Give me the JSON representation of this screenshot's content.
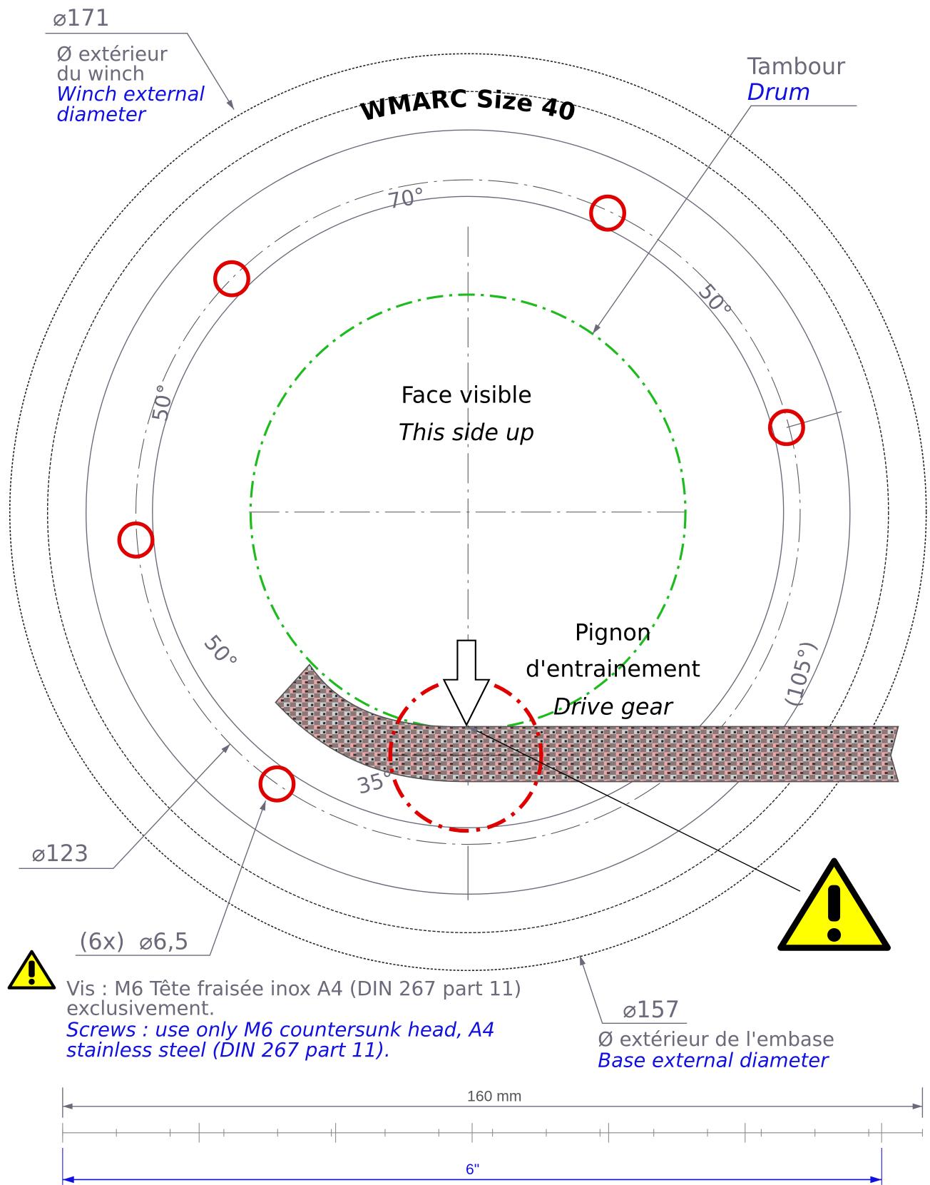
{
  "title": "WMARC Size 40",
  "winch_diameter": {
    "dimension": "⌀171",
    "lines_fr": [
      "Ø extérieur",
      "du winch"
    ],
    "lines_en": [
      "Winch external",
      "diameter"
    ]
  },
  "drum": {
    "fr": "Tambour",
    "en": "Drum"
  },
  "face": {
    "fr": "Face visible",
    "en": "This side up"
  },
  "drive_gear": {
    "fr": [
      "Pignon",
      "d'entrainement"
    ],
    "en": "Drive gear"
  },
  "angles": [
    "70°",
    "50°",
    "50°",
    "50°",
    "35°",
    "(105°)"
  ],
  "bolt_circle": "⌀123",
  "holes": "(6x)  ⌀6,5",
  "screw_note": {
    "fr": [
      "Vis : M6 Tête fraisée inox A4 (DIN 267 part 11)",
      "exclusivement."
    ],
    "en": [
      "Screws : use only M6 countersunk head, A4",
      "stainless steel (DIN 267 part 11)."
    ]
  },
  "base_diameter": {
    "dimension": "⌀157",
    "fr": "Ø extérieur de l'embase",
    "en": "Base external diameter"
  },
  "scale": {
    "metric": "160 mm",
    "imperial": "6\""
  }
}
